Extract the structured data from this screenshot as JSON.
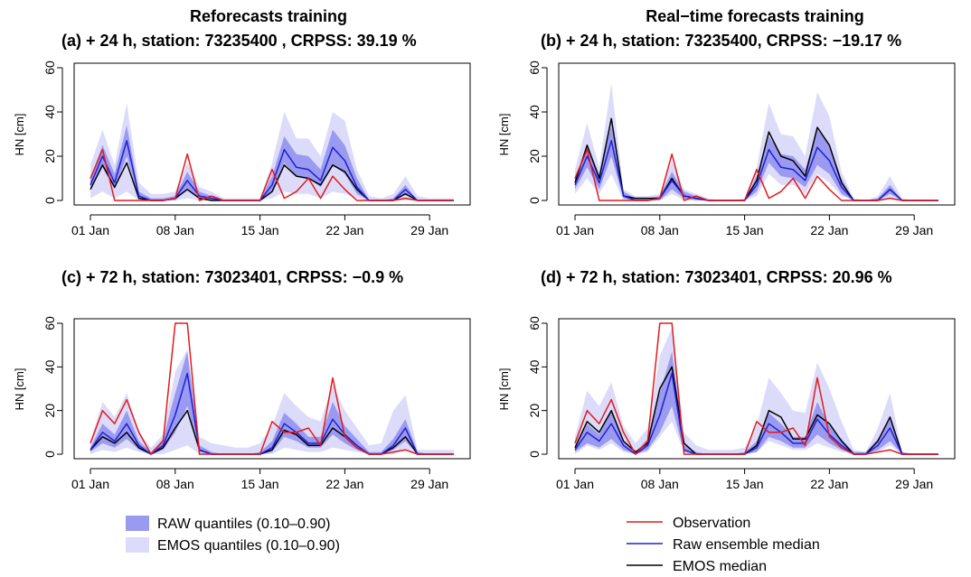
{
  "column_titles": [
    "Reforecasts training",
    "Real−time forecasts training"
  ],
  "legend": {
    "raw_quantiles": "RAW quantiles (0.10–0.90)",
    "emos_quantiles": "EMOS quantiles (0.10–0.90)",
    "observation": "Observation",
    "raw_median": "Raw ensemble median",
    "emos_median": "EMOS median"
  },
  "colors": {
    "observation": "#e41a1c",
    "raw_median": "#1f1fd6",
    "emos_median": "#000000",
    "raw_band": "#9a9af0",
    "emos_band": "#dcdcfa"
  },
  "chart_data": [
    {
      "type": "line",
      "label": "(a)",
      "title": "+ 24 h, station:  73235400 , CRPSS:  39.19 %",
      "ylabel": "HN [cm]",
      "ylim": [
        0,
        60
      ],
      "yticks": [
        0,
        20,
        40,
        60
      ],
      "xticks": [
        1,
        8,
        15,
        22,
        29
      ],
      "xtick_labels": [
        "01 Jan",
        "08 Jan",
        "15 Jan",
        "22 Jan",
        "29 Jan"
      ],
      "x": [
        1,
        2,
        3,
        4,
        5,
        6,
        7,
        8,
        9,
        10,
        11,
        12,
        13,
        14,
        15,
        16,
        17,
        18,
        19,
        20,
        21,
        22,
        23,
        24,
        25,
        26,
        27,
        28,
        29,
        30,
        31
      ],
      "observation": [
        10,
        23,
        0,
        0,
        0,
        0,
        0,
        1,
        21,
        0,
        2,
        0,
        0,
        0,
        0,
        14,
        1,
        4,
        10,
        1,
        11,
        5,
        0,
        0,
        0,
        0,
        1,
        0,
        0,
        0,
        0
      ],
      "raw_median": [
        7,
        20,
        8,
        27,
        2,
        0,
        0,
        1,
        9,
        2,
        1,
        0,
        0,
        0,
        0,
        7,
        23,
        15,
        14,
        9,
        24,
        18,
        6,
        0,
        0,
        0,
        5,
        0,
        0,
        0,
        0
      ],
      "emos_median": [
        5,
        16,
        6,
        17,
        1,
        0,
        0,
        1,
        5,
        1,
        0,
        0,
        0,
        0,
        0,
        4,
        16,
        11,
        10,
        7,
        16,
        13,
        5,
        0,
        0,
        0,
        3,
        0,
        0,
        0,
        0
      ],
      "raw_q10": [
        5,
        15,
        5,
        20,
        1,
        0,
        0,
        0,
        5,
        1,
        0,
        0,
        0,
        0,
        0,
        4,
        17,
        11,
        10,
        6,
        16,
        12,
        3,
        0,
        0,
        0,
        3,
        0,
        0,
        0,
        0
      ],
      "raw_q90": [
        10,
        25,
        12,
        34,
        4,
        1,
        1,
        2,
        13,
        4,
        2,
        0,
        0,
        0,
        0,
        11,
        29,
        21,
        20,
        14,
        32,
        25,
        10,
        0,
        0,
        1,
        7,
        0,
        0,
        0,
        0
      ],
      "emos_q10": [
        1,
        4,
        1,
        4,
        0,
        0,
        0,
        0,
        1,
        0,
        0,
        0,
        0,
        0,
        0,
        1,
        4,
        3,
        3,
        1,
        4,
        3,
        1,
        0,
        0,
        0,
        0,
        0,
        0,
        0,
        0
      ],
      "emos_q90": [
        16,
        32,
        16,
        44,
        8,
        3,
        3,
        4,
        17,
        6,
        4,
        1,
        1,
        1,
        1,
        17,
        40,
        28,
        28,
        20,
        40,
        36,
        14,
        2,
        1,
        3,
        11,
        2,
        1,
        1,
        1
      ]
    },
    {
      "type": "line",
      "label": "(b)",
      "title": "+ 24 h, station:  73235400, CRPSS:  −19.17 %",
      "ylabel": "HN [cm]",
      "ylim": [
        0,
        60
      ],
      "yticks": [
        0,
        20,
        40,
        60
      ],
      "xticks": [
        1,
        8,
        15,
        22,
        29
      ],
      "xtick_labels": [
        "01 Jan",
        "08 Jan",
        "15 Jan",
        "22 Jan",
        "29 Jan"
      ],
      "x": [
        1,
        2,
        3,
        4,
        5,
        6,
        7,
        8,
        9,
        10,
        11,
        12,
        13,
        14,
        15,
        16,
        17,
        18,
        19,
        20,
        21,
        22,
        23,
        24,
        25,
        26,
        27,
        28,
        29,
        30,
        31
      ],
      "observation": [
        10,
        23,
        0,
        0,
        0,
        0,
        0,
        1,
        21,
        0,
        2,
        0,
        0,
        0,
        0,
        14,
        1,
        4,
        10,
        1,
        11,
        5,
        0,
        0,
        0,
        0,
        1,
        0,
        0,
        0,
        0
      ],
      "raw_median": [
        7,
        20,
        8,
        27,
        2,
        0,
        0,
        1,
        9,
        2,
        1,
        0,
        0,
        0,
        0,
        7,
        23,
        15,
        14,
        9,
        24,
        18,
        6,
        0,
        0,
        0,
        5,
        0,
        0,
        0,
        0
      ],
      "emos_median": [
        8,
        25,
        10,
        37,
        2,
        1,
        1,
        1,
        10,
        2,
        1,
        0,
        0,
        0,
        0,
        9,
        31,
        20,
        18,
        11,
        33,
        25,
        8,
        0,
        0,
        0,
        5,
        0,
        0,
        0,
        0
      ],
      "raw_q10": [
        5,
        15,
        5,
        20,
        1,
        0,
        0,
        0,
        5,
        1,
        0,
        0,
        0,
        0,
        0,
        4,
        17,
        11,
        10,
        6,
        16,
        12,
        3,
        0,
        0,
        0,
        3,
        0,
        0,
        0,
        0
      ],
      "raw_q90": [
        10,
        25,
        12,
        34,
        4,
        1,
        1,
        2,
        13,
        4,
        2,
        0,
        0,
        0,
        0,
        11,
        29,
        21,
        20,
        14,
        32,
        25,
        10,
        0,
        0,
        1,
        7,
        0,
        0,
        0,
        0
      ],
      "emos_q10": [
        3,
        10,
        3,
        12,
        0,
        0,
        0,
        0,
        3,
        0,
        0,
        0,
        0,
        0,
        0,
        2,
        12,
        7,
        7,
        3,
        12,
        8,
        2,
        0,
        0,
        0,
        1,
        0,
        0,
        0,
        0
      ],
      "emos_q90": [
        14,
        35,
        15,
        53,
        5,
        2,
        2,
        3,
        18,
        5,
        3,
        1,
        0,
        0,
        1,
        15,
        44,
        30,
        29,
        20,
        49,
        38,
        13,
        1,
        0,
        2,
        11,
        1,
        0,
        0,
        0
      ]
    },
    {
      "type": "line",
      "label": "(c)",
      "title": "+ 72 h, station:  73023401, CRPSS:  −0.9 %",
      "ylabel": "HN [cm]",
      "ylim": [
        0,
        60
      ],
      "yticks": [
        0,
        20,
        40,
        60
      ],
      "xticks": [
        1,
        8,
        15,
        22,
        29
      ],
      "xtick_labels": [
        "01 Jan",
        "08 Jan",
        "15 Jan",
        "22 Jan",
        "29 Jan"
      ],
      "x": [
        1,
        2,
        3,
        4,
        5,
        6,
        7,
        8,
        9,
        10,
        11,
        12,
        13,
        14,
        15,
        16,
        17,
        18,
        19,
        20,
        21,
        22,
        23,
        24,
        25,
        26,
        27,
        28,
        29,
        30,
        31
      ],
      "observation": [
        5,
        20,
        14,
        25,
        10,
        0,
        6,
        60,
        60,
        0,
        0,
        0,
        0,
        0,
        0,
        15,
        10,
        10,
        12,
        4,
        35,
        8,
        3,
        0,
        0,
        1,
        2,
        0,
        0,
        0,
        0
      ],
      "raw_median": [
        2,
        10,
        6,
        14,
        4,
        0,
        4,
        18,
        37,
        2,
        0,
        0,
        0,
        0,
        0,
        3,
        14,
        10,
        5,
        5,
        16,
        9,
        4,
        0,
        0,
        4,
        12,
        0,
        0,
        0,
        0
      ],
      "emos_median": [
        2,
        8,
        5,
        10,
        3,
        0,
        3,
        12,
        20,
        2,
        0,
        0,
        0,
        0,
        0,
        2,
        11,
        9,
        4,
        4,
        12,
        8,
        3,
        0,
        0,
        3,
        8,
        0,
        0,
        0,
        0
      ],
      "raw_q10": [
        1,
        5,
        3,
        7,
        2,
        0,
        2,
        10,
        22,
        1,
        0,
        0,
        0,
        0,
        0,
        1,
        8,
        6,
        3,
        3,
        9,
        5,
        2,
        0,
        0,
        2,
        6,
        0,
        0,
        0,
        0
      ],
      "raw_q90": [
        3,
        14,
        9,
        20,
        6,
        1,
        7,
        28,
        47,
        4,
        1,
        0,
        0,
        0,
        1,
        6,
        19,
        14,
        8,
        8,
        24,
        13,
        7,
        1,
        1,
        7,
        16,
        1,
        0,
        0,
        0
      ],
      "emos_q10": [
        0,
        2,
        1,
        3,
        1,
        0,
        0,
        2,
        4,
        0,
        0,
        0,
        0,
        0,
        0,
        0,
        3,
        2,
        1,
        1,
        3,
        2,
        1,
        0,
        0,
        0,
        2,
        0,
        0,
        0,
        0
      ],
      "emos_q90": [
        6,
        24,
        17,
        28,
        10,
        3,
        9,
        38,
        48,
        8,
        5,
        4,
        3,
        3,
        5,
        13,
        28,
        22,
        17,
        15,
        32,
        20,
        12,
        4,
        5,
        20,
        27,
        2,
        2,
        2,
        2
      ]
    },
    {
      "type": "line",
      "label": "(d)",
      "title": "+ 72 h, station:  73023401, CRPSS:  20.96 %",
      "ylabel": "HN [cm]",
      "ylim": [
        0,
        60
      ],
      "yticks": [
        0,
        20,
        40,
        60
      ],
      "xticks": [
        1,
        8,
        15,
        22,
        29
      ],
      "xtick_labels": [
        "01 Jan",
        "08 Jan",
        "15 Jan",
        "22 Jan",
        "29 Jan"
      ],
      "x": [
        1,
        2,
        3,
        4,
        5,
        6,
        7,
        8,
        9,
        10,
        11,
        12,
        13,
        14,
        15,
        16,
        17,
        18,
        19,
        20,
        21,
        22,
        23,
        24,
        25,
        26,
        27,
        28,
        29,
        30,
        31
      ],
      "observation": [
        5,
        20,
        14,
        25,
        10,
        0,
        6,
        60,
        60,
        0,
        0,
        0,
        0,
        0,
        0,
        15,
        10,
        10,
        12,
        4,
        35,
        8,
        3,
        0,
        0,
        1,
        2,
        0,
        0,
        0,
        0
      ],
      "raw_median": [
        2,
        10,
        6,
        14,
        4,
        0,
        4,
        18,
        37,
        2,
        0,
        0,
        0,
        0,
        0,
        3,
        14,
        10,
        5,
        5,
        16,
        9,
        4,
        0,
        0,
        4,
        12,
        0,
        0,
        0,
        0
      ],
      "emos_median": [
        3,
        15,
        10,
        20,
        6,
        1,
        5,
        30,
        40,
        5,
        0,
        0,
        0,
        0,
        0,
        4,
        20,
        17,
        7,
        7,
        18,
        14,
        6,
        0,
        0,
        6,
        17,
        0,
        0,
        0,
        0
      ],
      "raw_q10": [
        1,
        5,
        3,
        7,
        2,
        0,
        2,
        10,
        22,
        1,
        0,
        0,
        0,
        0,
        0,
        1,
        8,
        6,
        3,
        3,
        9,
        5,
        2,
        0,
        0,
        2,
        6,
        0,
        0,
        0,
        0
      ],
      "raw_q90": [
        3,
        14,
        9,
        20,
        6,
        1,
        7,
        28,
        47,
        4,
        1,
        0,
        0,
        0,
        1,
        6,
        19,
        14,
        8,
        8,
        24,
        13,
        7,
        1,
        1,
        7,
        16,
        1,
        0,
        0,
        0
      ],
      "emos_q10": [
        0,
        4,
        2,
        5,
        1,
        0,
        1,
        8,
        15,
        1,
        0,
        0,
        0,
        0,
        0,
        1,
        6,
        4,
        2,
        2,
        5,
        3,
        1,
        0,
        0,
        1,
        4,
        0,
        0,
        0,
        0
      ],
      "emos_q90": [
        8,
        29,
        22,
        33,
        13,
        5,
        12,
        45,
        58,
        10,
        4,
        2,
        2,
        2,
        3,
        13,
        35,
        28,
        20,
        19,
        42,
        30,
        15,
        2,
        1,
        12,
        28,
        1,
        0,
        0,
        0
      ]
    }
  ]
}
